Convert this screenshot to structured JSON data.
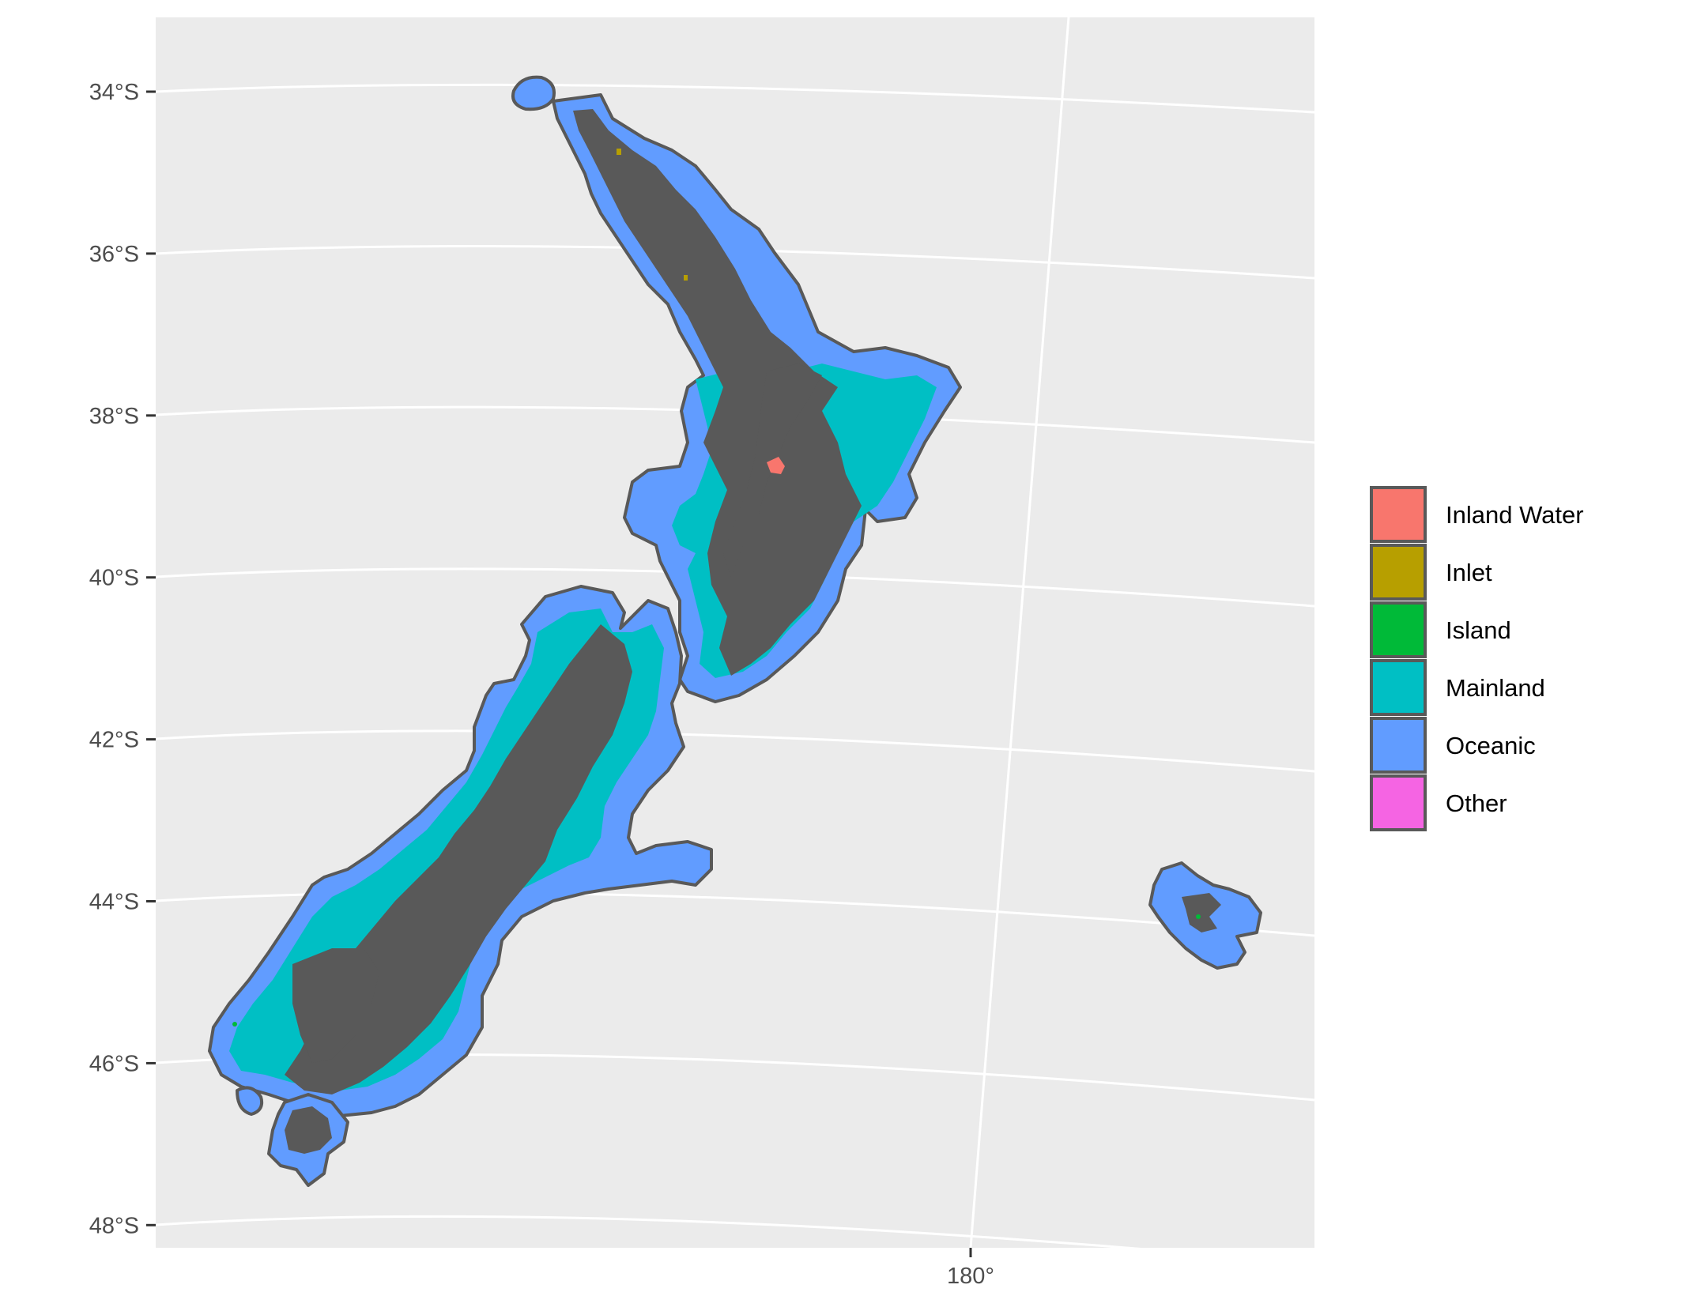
{
  "map": {
    "title": "",
    "y_axis_labels": [
      "34°S",
      "36°S",
      "38°S",
      "40°S",
      "42°S",
      "44°S",
      "46°S",
      "48°S"
    ],
    "x_axis_labels": [
      "180°"
    ],
    "legend": {
      "title": "",
      "items": [
        {
          "label": "Inland Water",
          "color": "#F8766D"
        },
        {
          "label": "Inlet",
          "color": "#B79F00"
        },
        {
          "label": "Island",
          "color": "#00BA38"
        },
        {
          "label": "Mainland",
          "color": "#00BFC4"
        },
        {
          "label": "Oceanic",
          "color": "#619CFF"
        },
        {
          "label": "Other",
          "color": "#F564E3"
        }
      ]
    },
    "colors": {
      "panel_background": "#EBEBEB",
      "gridline": "#FFFFFF",
      "polygon_border": "#595959",
      "axis_text": "#4D4D4D"
    }
  }
}
